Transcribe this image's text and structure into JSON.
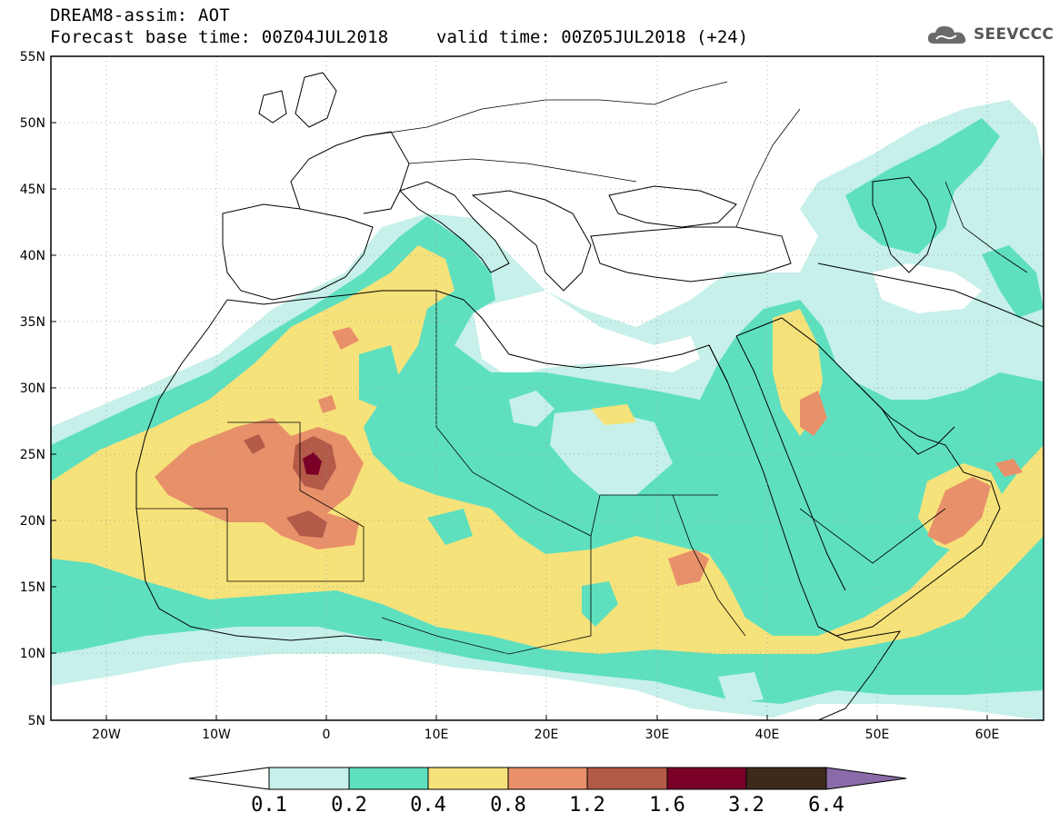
{
  "header": {
    "title_line1": "DREAM8-assim: AOT",
    "title_line2": "Forecast base time: 00Z04JUL2018",
    "valid_time": "valid time: 00Z05JUL2018 (+24)",
    "logo_text": "SEEVCCC",
    "logo_icon": "cloud-icon"
  },
  "map": {
    "lat_labels": [
      "55N",
      "50N",
      "45N",
      "40N",
      "35N",
      "30N",
      "25N",
      "20N",
      "15N",
      "10N",
      "5N"
    ],
    "lon_labels": [
      "20W",
      "10W",
      "0",
      "10E",
      "20E",
      "30E",
      "40E",
      "50E",
      "60E"
    ],
    "lat_range": [
      5,
      55
    ],
    "lon_range": [
      -25,
      65
    ],
    "grid": "dotted"
  },
  "colorbar": {
    "labels": [
      "0.1",
      "0.2",
      "0.4",
      "0.8",
      "1.2",
      "1.6",
      "3.2",
      "6.4"
    ],
    "colors": [
      "#ffffff",
      "#c6f0e9",
      "#5ee0bf",
      "#f6e27a",
      "#e8906a",
      "#b35a48",
      "#7a0028",
      "#3d2a1a",
      "#8a6aa8"
    ]
  },
  "colors": {
    "level_0_1": "#c6f0e9",
    "level_0_2": "#5ee0bf",
    "level_0_4": "#f6e27a",
    "level_0_8": "#e8906a",
    "level_1_2": "#b35a48",
    "level_1_6": "#7a0028"
  }
}
